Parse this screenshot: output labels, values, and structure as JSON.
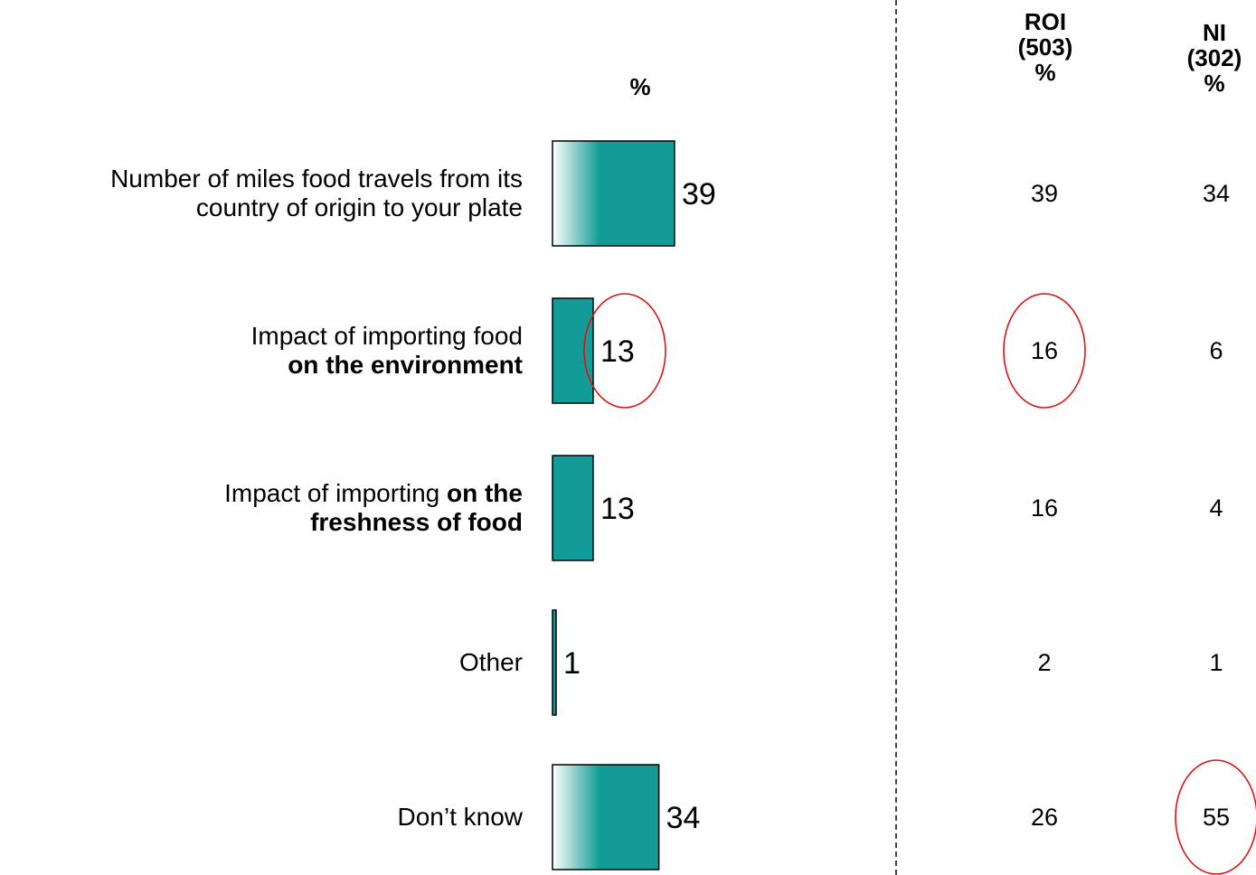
{
  "chart_data": {
    "type": "bar",
    "orientation": "horizontal",
    "value_header": "%",
    "categories": [
      {
        "text": "Number of miles food travels from its country of origin to your plate",
        "lines": [
          [
            {
              "t": "Number of miles food travels from its",
              "b": false
            }
          ],
          [
            {
              "t": "country of origin to your plate",
              "b": false
            }
          ]
        ]
      },
      {
        "text": "Impact of importing food on the environment",
        "lines": [
          [
            {
              "t": "Impact of importing food",
              "b": false
            }
          ],
          [
            {
              "t": "on the environment",
              "b": true
            }
          ]
        ]
      },
      {
        "text": "Impact of importing on the freshness of food",
        "lines": [
          [
            {
              "t": "Impact of importing ",
              "b": false
            },
            {
              "t": "on the",
              "b": true
            }
          ],
          [
            {
              "t": "freshness of food",
              "b": true
            }
          ]
        ]
      },
      {
        "text": "Other",
        "lines": [
          [
            {
              "t": "Other",
              "b": false
            }
          ]
        ]
      },
      {
        "text": "Don’t know",
        "lines": [
          [
            {
              "t": "Don’t know",
              "b": false
            }
          ]
        ]
      }
    ],
    "values": [
      39,
      13,
      13,
      1,
      34
    ],
    "bar_color": "#139b98",
    "table": {
      "columns": [
        {
          "name": "ROI",
          "base": "(503)",
          "unit": "%",
          "values": [
            39,
            16,
            16,
            2,
            26
          ]
        },
        {
          "name": "NI",
          "base": "(302)",
          "unit": "%",
          "values": [
            34,
            6,
            4,
            1,
            55
          ]
        }
      ]
    },
    "highlights": [
      {
        "target": "bar",
        "row": 1
      },
      {
        "target": "table",
        "column": 0,
        "row": 1
      },
      {
        "target": "table",
        "column": 1,
        "row": 4
      }
    ],
    "highlight_color": "#e01010"
  }
}
